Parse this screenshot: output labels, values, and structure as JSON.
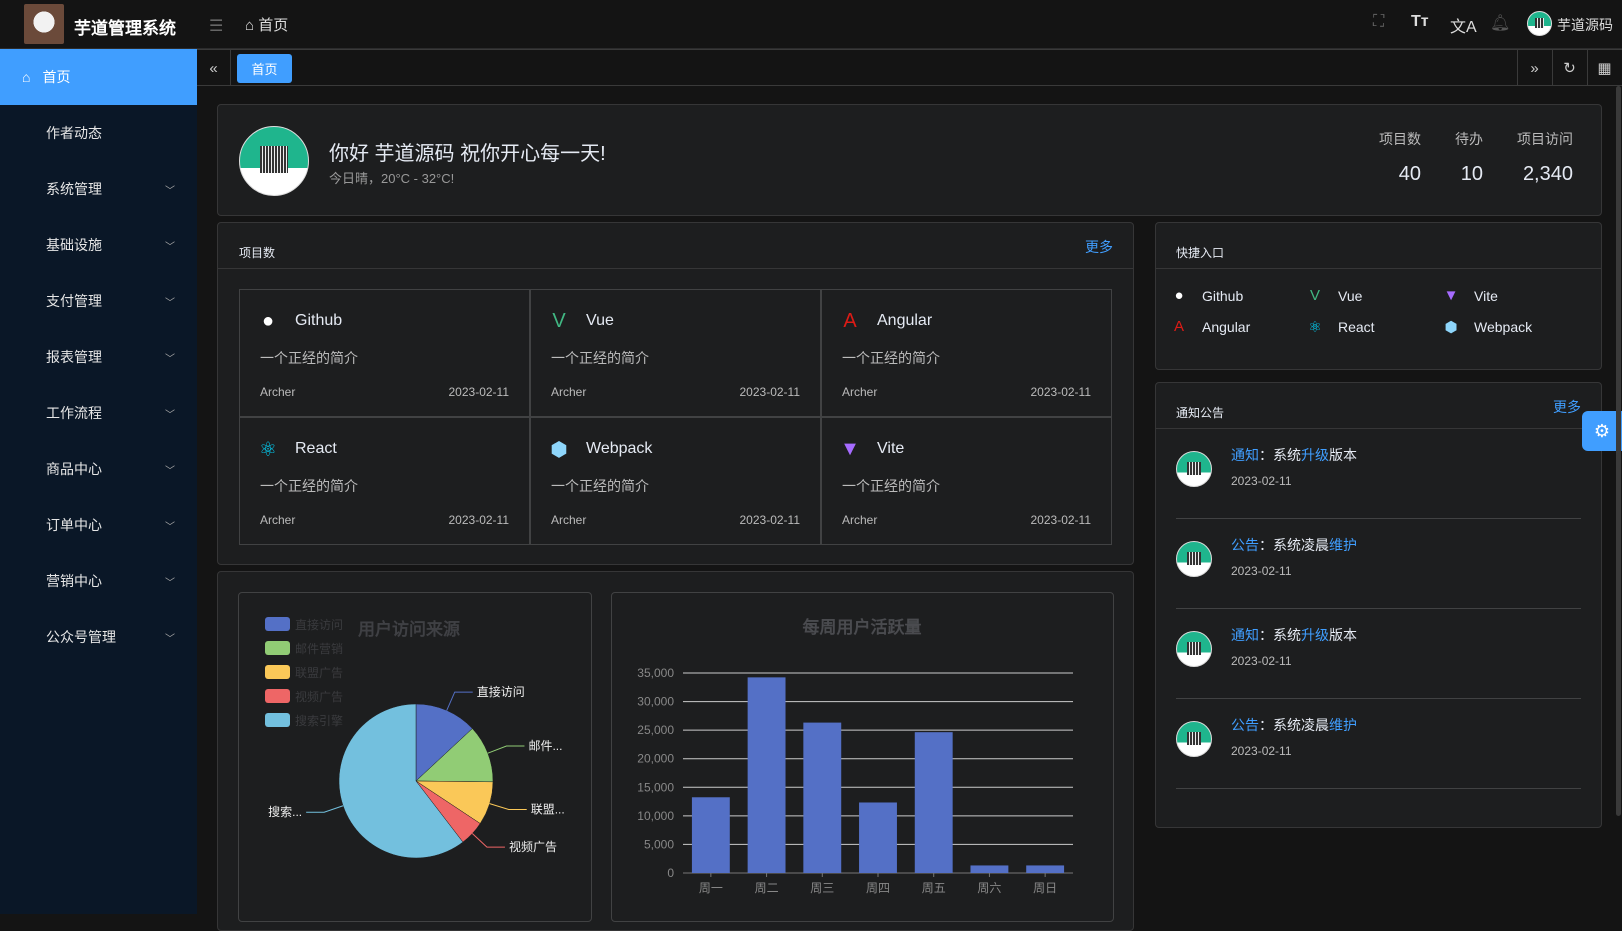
{
  "header": {
    "title": "芋道管理系统",
    "breadcrumb": "首页",
    "username": "芋道源码",
    "icons": [
      "fullscreen-icon",
      "font-size-icon",
      "translate-icon",
      "bell-icon"
    ]
  },
  "sidebar": {
    "items": [
      {
        "label": "首页",
        "active": true
      },
      {
        "label": "作者动态"
      },
      {
        "label": "系统管理",
        "expandable": true
      },
      {
        "label": "基础设施",
        "expandable": true
      },
      {
        "label": "支付管理",
        "expandable": true
      },
      {
        "label": "报表管理",
        "expandable": true
      },
      {
        "label": "工作流程",
        "expandable": true
      },
      {
        "label": "商品中心",
        "expandable": true
      },
      {
        "label": "订单中心",
        "expandable": true
      },
      {
        "label": "营销中心",
        "expandable": true
      },
      {
        "label": "公众号管理",
        "expandable": true
      }
    ]
  },
  "tabs": {
    "active": "首页"
  },
  "welcome": {
    "greeting": "你好 芋道源码 祝你开心每一天!",
    "weather": "今日晴，20°C - 32°C!",
    "stats": [
      {
        "label": "项目数",
        "value": "40"
      },
      {
        "label": "待办",
        "value": "10"
      },
      {
        "label": "项目访问",
        "value": "2,340"
      }
    ]
  },
  "projects": {
    "title": "项目数",
    "more": "更多",
    "items": [
      {
        "name": "Github",
        "icon": "github-icon",
        "desc": "一个正经的简介",
        "author": "Archer",
        "date": "2023-02-11"
      },
      {
        "name": "Vue",
        "icon": "vue-icon",
        "desc": "一个正经的简介",
        "author": "Archer",
        "date": "2023-02-11"
      },
      {
        "name": "Angular",
        "icon": "angular-icon",
        "desc": "一个正经的简介",
        "author": "Archer",
        "date": "2023-02-11"
      },
      {
        "name": "React",
        "icon": "react-icon",
        "desc": "一个正经的简介",
        "author": "Archer",
        "date": "2023-02-11"
      },
      {
        "name": "Webpack",
        "icon": "webpack-icon",
        "desc": "一个正经的简介",
        "author": "Archer",
        "date": "2023-02-11"
      },
      {
        "name": "Vite",
        "icon": "vite-icon",
        "desc": "一个正经的简介",
        "author": "Archer",
        "date": "2023-02-11"
      }
    ]
  },
  "shortcuts": {
    "title": "快捷入口",
    "items": [
      {
        "name": "Github",
        "icon": "github-icon"
      },
      {
        "name": "Vue",
        "icon": "vue-icon"
      },
      {
        "name": "Vite",
        "icon": "vite-icon"
      },
      {
        "name": "Angular",
        "icon": "angular-icon"
      },
      {
        "name": "React",
        "icon": "react-icon"
      },
      {
        "name": "Webpack",
        "icon": "webpack-icon"
      }
    ]
  },
  "notices": {
    "title": "通知公告",
    "more": "更多",
    "items": [
      {
        "type": "通知",
        "sep": "：系统",
        "key": "升级",
        "tail": "版本",
        "date": "2023-02-11"
      },
      {
        "type": "公告",
        "sep": "：系统凌晨",
        "key": "维护",
        "tail": "",
        "date": "2023-02-11"
      },
      {
        "type": "通知",
        "sep": "：系统",
        "key": "升级",
        "tail": "版本",
        "date": "2023-02-11"
      },
      {
        "type": "公告",
        "sep": "：系统凌晨",
        "key": "维护",
        "tail": "",
        "date": "2023-02-11"
      }
    ]
  },
  "chart_data": [
    {
      "type": "pie",
      "title": "用户访问来源",
      "legend_position": "top-left",
      "labels": [
        "直接访问",
        "邮件营销",
        "联盟广告",
        "视频广告",
        "搜索引擎"
      ],
      "display_labels": [
        "直接访问",
        "邮件...",
        "联盟...",
        "视频广告",
        "搜索..."
      ],
      "values": [
        335,
        310,
        234,
        135,
        1548
      ],
      "colors": [
        "#5470c6",
        "#91cc75",
        "#fac858",
        "#ee6666",
        "#73c0de"
      ]
    },
    {
      "type": "bar",
      "title": "每周用户活跃量",
      "categories": [
        "周一",
        "周二",
        "周三",
        "周四",
        "周五",
        "周六",
        "周日"
      ],
      "values": [
        13253,
        34235,
        26321,
        12340,
        24643,
        1322,
        1324
      ],
      "ylim": [
        0,
        35000
      ],
      "yticks": [
        "0",
        "5,000",
        "10,000",
        "15,000",
        "20,000",
        "25,000",
        "30,000",
        "35,000"
      ],
      "grid": true,
      "color": "#5470c6"
    }
  ]
}
